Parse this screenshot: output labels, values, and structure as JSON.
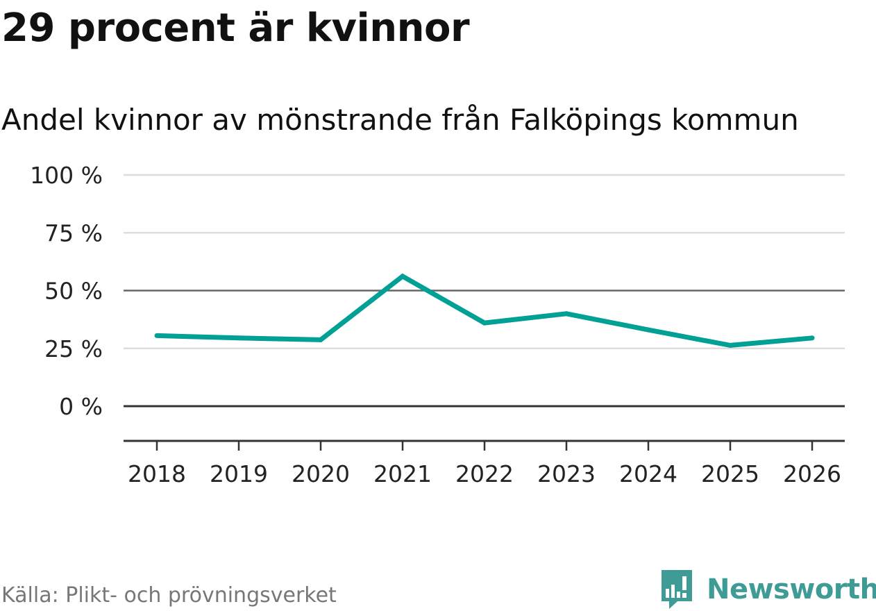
{
  "chart_data": {
    "type": "line",
    "title": "29 procent är kvinnor",
    "subtitle": "Andel kvinnor av mönstrande från Falköpings kommun",
    "xlabel": "",
    "ylabel": "",
    "x": [
      "2018",
      "2019",
      "2020",
      "2021",
      "2022",
      "2023",
      "2024",
      "2025",
      "2026"
    ],
    "series": [
      {
        "name": "Andel kvinnor",
        "values": [
          30.5,
          29.5,
          28.7,
          56.2,
          36.0,
          40.0,
          33.0,
          26.3,
          29.5
        ],
        "color": "#00a095"
      }
    ],
    "ylim": [
      -15,
      100
    ],
    "yticks": [
      0,
      25,
      50,
      75,
      100
    ],
    "ytick_labels": [
      "0 %",
      "25 %",
      "50 %",
      "75 %",
      "100 %"
    ],
    "grid": true,
    "source": "Källa: Plikt- och prövningsverket"
  },
  "brand": {
    "name": "Newsworthy",
    "logo_icon": "newsworthy-chat-bars-icon",
    "color": "#3f9b95"
  },
  "colors": {
    "grid": "#dddddd",
    "grid_strong": "#555555",
    "axis": "#333333",
    "tick_text": "#222222"
  }
}
